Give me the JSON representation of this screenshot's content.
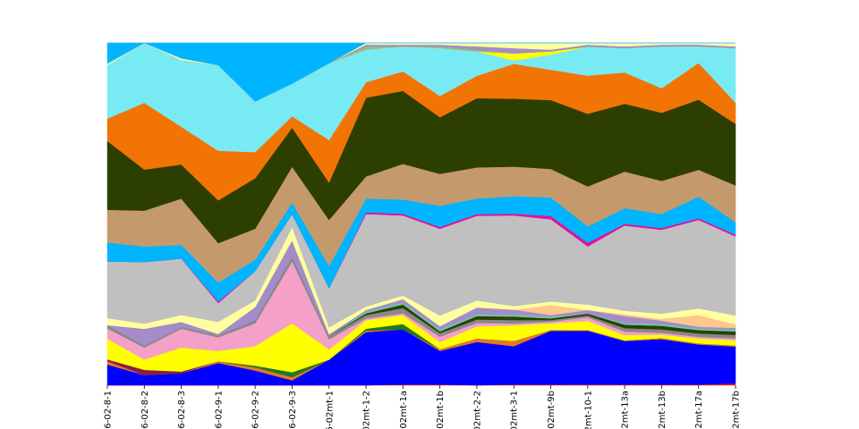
{
  "chart_data": {
    "type": "area",
    "stacked": true,
    "normalized": true,
    "title": "",
    "xlabel": "",
    "ylabel": "",
    "ylim": [
      0,
      1
    ],
    "grid": false,
    "legend": "none",
    "categories": [
      "6-02-8-1",
      "6-02-8-2",
      "6-02-8-3",
      "6-02-9-1",
      "6-02-9-2",
      "6-02-9-3",
      "5-02mt-1",
      "02mt-1-2",
      "02mt-1a",
      "02mt-1b",
      "02mt-2-2",
      "02mt-3-1",
      "02mt-9b",
      "2mt-10-1",
      "2mt-13a",
      "2mt-13b",
      "2mt-17a",
      "2mt-17b"
    ],
    "series": [
      {
        "color": "#e41a1c",
        "values": [
          0.0,
          0.0,
          0.0,
          0.0,
          0.0,
          0.0,
          0.0,
          0.0,
          0.002,
          0.002,
          0.0,
          0.002,
          0.002,
          0.002,
          0.002,
          0.002,
          0.002,
          0.005
        ]
      },
      {
        "color": "#0000ff",
        "values": [
          0.06,
          0.03,
          0.035,
          0.065,
          0.045,
          0.015,
          0.075,
          0.155,
          0.155,
          0.095,
          0.125,
          0.11,
          0.16,
          0.148,
          0.125,
          0.13,
          0.12,
          0.105
        ]
      },
      {
        "color": "#e87722",
        "values": [
          0.01,
          0.0,
          0.0,
          0.005,
          0.01,
          0.01,
          0.0,
          0.005,
          0.0,
          0.005,
          0.01,
          0.015,
          0.002,
          0.002,
          0.002,
          0.003,
          0.003,
          0.003
        ]
      },
      {
        "color": "#8b1a4a",
        "values": [
          0.005,
          0.015,
          0.005,
          0.0,
          0.0,
          0.0,
          0.0,
          0.0,
          0.0,
          0.0,
          0.0,
          0.0,
          0.0,
          0.0,
          0.0,
          0.0,
          0.0,
          0.0
        ]
      },
      {
        "color": "#1e7b1e",
        "values": [
          0.0,
          0.0,
          0.0,
          0.0,
          0.005,
          0.015,
          0.0,
          0.005,
          0.015,
          0.0,
          0.0,
          0.0,
          0.0,
          0.0,
          0.0,
          0.0,
          0.0,
          0.0
        ]
      },
      {
        "color": "#ffff00",
        "values": [
          0.06,
          0.03,
          0.07,
          0.03,
          0.06,
          0.15,
          0.03,
          0.025,
          0.025,
          0.02,
          0.035,
          0.045,
          0.02,
          0.025,
          0.015,
          0.01,
          0.015,
          0.015
        ]
      },
      {
        "color": "#f4a0c8",
        "values": [
          0.03,
          0.035,
          0.055,
          0.04,
          0.07,
          0.19,
          0.03,
          0.005,
          0.005,
          0.015,
          0.01,
          0.005,
          0.005,
          0.01,
          0.01,
          0.005,
          0.005,
          0.005
        ]
      },
      {
        "color": "#888888",
        "values": [
          0.01,
          0.005,
          0.005,
          0.005,
          0.01,
          0.015,
          0.01,
          0.01,
          0.015,
          0.01,
          0.01,
          0.01,
          0.005,
          0.005,
          0.01,
          0.01,
          0.01,
          0.01
        ]
      },
      {
        "color": "#2d3f00",
        "values": [
          0.0,
          0.0,
          0.0,
          0.0,
          0.0,
          0.0,
          0.0,
          0.005,
          0.01,
          0.005,
          0.01,
          0.01,
          0.005,
          0.005,
          0.01,
          0.01,
          0.01,
          0.01
        ]
      },
      {
        "color": "#66cdaa",
        "values": [
          0.0,
          0.0,
          0.0,
          0.0,
          0.0,
          0.0,
          0.0,
          0.005,
          0.005,
          0.005,
          0.005,
          0.005,
          0.005,
          0.0,
          0.005,
          0.005,
          0.005,
          0.005
        ]
      },
      {
        "color": "#a48cc8",
        "values": [
          0.0,
          0.05,
          0.015,
          0.005,
          0.04,
          0.05,
          0.005,
          0.005,
          0.01,
          0.01,
          0.02,
          0.015,
          0.005,
          0.01,
          0.02,
          0.01,
          0.005,
          0.005
        ]
      },
      {
        "color": "#fcc88c",
        "values": [
          0.0,
          0.0,
          0.0,
          0.0,
          0.0,
          0.0,
          0.0,
          0.0,
          0.0,
          0.0,
          0.0,
          0.0,
          0.03,
          0.0,
          0.005,
          0.005,
          0.035,
          0.01
        ]
      },
      {
        "color": "#ffffa0",
        "values": [
          0.02,
          0.015,
          0.02,
          0.035,
          0.02,
          0.04,
          0.02,
          0.01,
          0.01,
          0.03,
          0.02,
          0.01,
          0.01,
          0.015,
          0.01,
          0.015,
          0.02,
          0.025
        ]
      },
      {
        "color": "#c0c0c0",
        "values": [
          0.165,
          0.18,
          0.165,
          0.055,
          0.09,
          0.04,
          0.115,
          0.27,
          0.225,
          0.245,
          0.245,
          0.26,
          0.245,
          0.16,
          0.245,
          0.24,
          0.265,
          0.225
        ]
      },
      {
        "color": "#e0119d",
        "values": [
          0.0,
          0.0,
          0.0,
          0.005,
          0.0,
          0.0,
          0.0,
          0.005,
          0.005,
          0.005,
          0.005,
          0.005,
          0.01,
          0.01,
          0.005,
          0.005,
          0.005,
          0.005
        ]
      },
      {
        "color": "#00b4ff",
        "values": [
          0.055,
          0.045,
          0.04,
          0.055,
          0.035,
          0.035,
          0.065,
          0.04,
          0.04,
          0.06,
          0.045,
          0.05,
          0.055,
          0.045,
          0.045,
          0.04,
          0.065,
          0.035
        ]
      },
      {
        "color": "#c49a6c",
        "values": [
          0.095,
          0.105,
          0.135,
          0.115,
          0.095,
          0.11,
          0.135,
          0.065,
          0.1,
          0.09,
          0.09,
          0.085,
          0.085,
          0.11,
          0.105,
          0.095,
          0.08,
          0.105
        ]
      },
      {
        "color": "#2d3f00",
        "values": [
          0.2,
          0.12,
          0.1,
          0.125,
          0.155,
          0.12,
          0.11,
          0.23,
          0.205,
          0.16,
          0.2,
          0.195,
          0.205,
          0.2,
          0.195,
          0.195,
          0.21,
          0.175
        ]
      },
      {
        "color": "#f27405",
        "values": [
          0.065,
          0.195,
          0.11,
          0.145,
          0.08,
          0.035,
          0.125,
          0.045,
          0.055,
          0.06,
          0.065,
          0.1,
          0.09,
          0.105,
          0.09,
          0.07,
          0.11,
          0.06
        ]
      },
      {
        "color": "#78eaf4",
        "values": [
          0.155,
          0.175,
          0.195,
          0.25,
          0.155,
          0.1,
          0.225,
          0.095,
          0.07,
          0.135,
          0.07,
          0.01,
          0.045,
          0.08,
          0.07,
          0.12,
          0.05,
          0.155
        ]
      },
      {
        "color": "#ffff00",
        "values": [
          0.0,
          0.0,
          0.0,
          0.0,
          0.0,
          0.0,
          0.0,
          0.0,
          0.0,
          0.0,
          0.0,
          0.02,
          0.01,
          0.0,
          0.0,
          0.0,
          0.0,
          0.0
        ]
      },
      {
        "color": "#8fbc8f",
        "values": [
          0.0,
          0.0,
          0.0,
          0.0,
          0.0,
          0.0,
          0.0,
          0.01,
          0.0,
          0.005,
          0.005,
          0.0,
          0.0,
          0.0,
          0.0,
          0.0,
          0.0,
          0.0
        ]
      },
      {
        "color": "#a48cc8",
        "values": [
          0.0,
          0.0,
          0.0,
          0.0,
          0.0,
          0.0,
          0.0,
          0.005,
          0.005,
          0.005,
          0.01,
          0.015,
          0.005,
          0.005,
          0.005,
          0.005,
          0.005,
          0.005
        ]
      },
      {
        "color": "#ffffa0",
        "values": [
          0.005,
          0.0,
          0.005,
          0.0,
          0.0,
          0.0,
          0.0,
          0.005,
          0.005,
          0.005,
          0.01,
          0.015,
          0.02,
          0.005,
          0.01,
          0.005,
          0.005,
          0.01
        ]
      },
      {
        "color": "#00b4ff",
        "values": [
          0.06,
          0.0,
          0.045,
          0.065,
          0.18,
          0.125,
          0.06,
          0.0,
          0.0,
          0.0,
          0.0,
          0.0,
          0.0,
          0.0,
          0.0,
          0.0,
          0.0,
          0.0
        ]
      }
    ]
  }
}
